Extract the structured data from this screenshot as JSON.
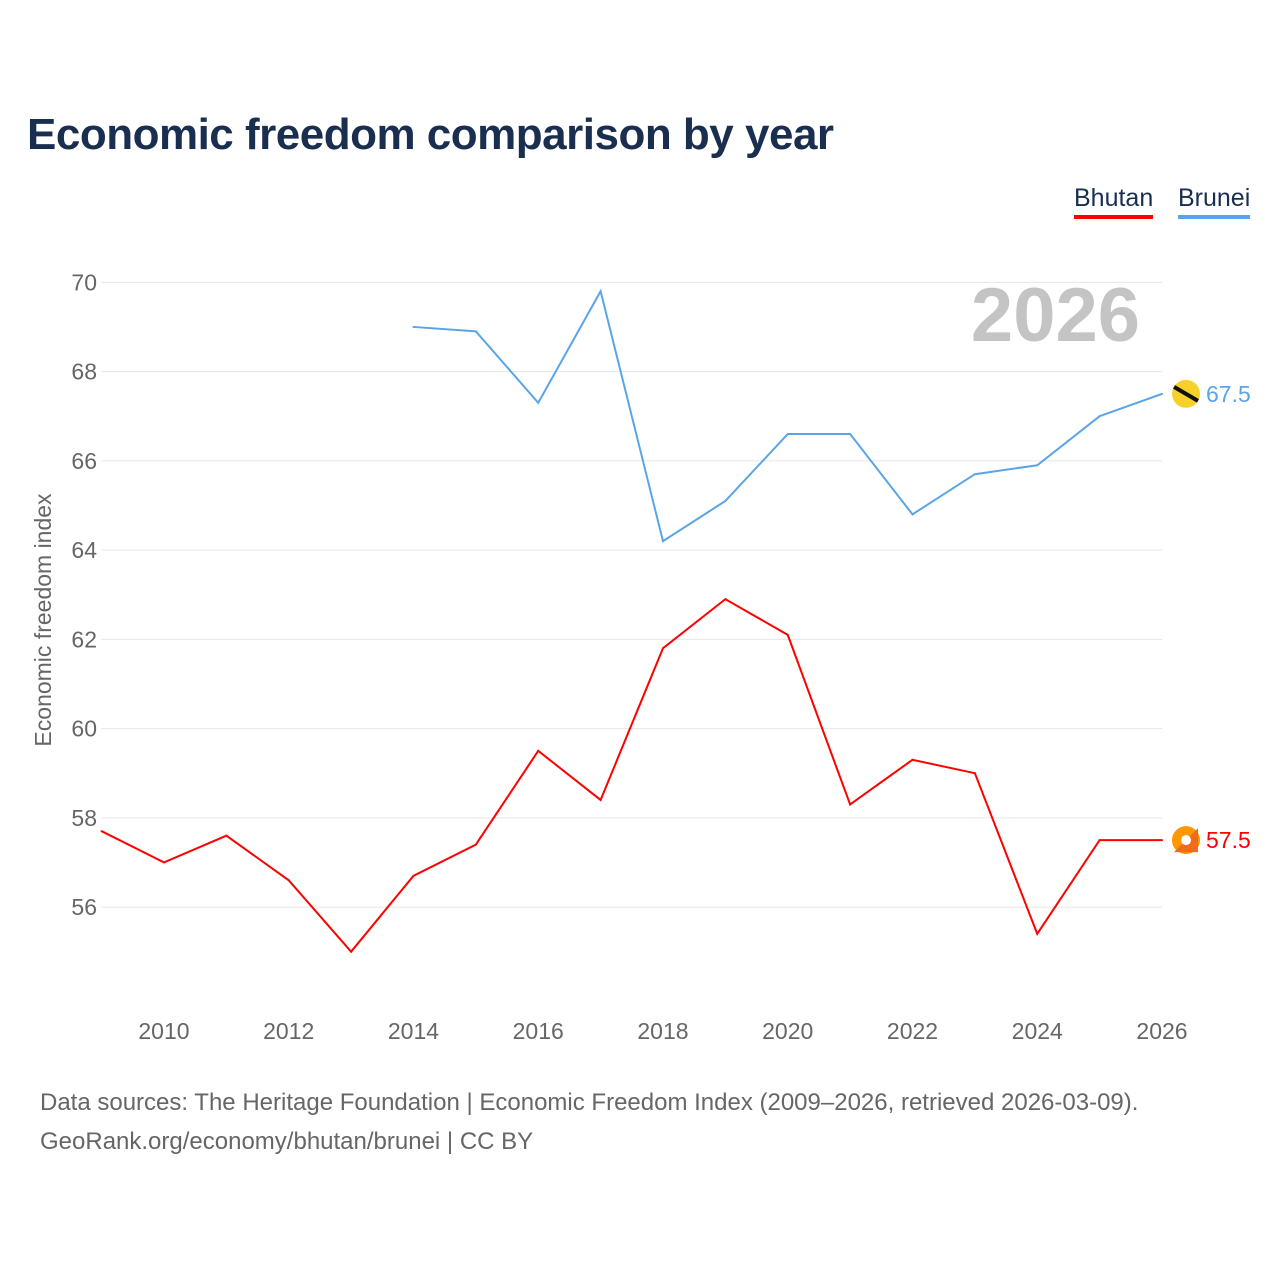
{
  "chart_data": {
    "type": "line",
    "title": "Economic freedom comparison by year",
    "xlabel": "",
    "ylabel": "Economic freedom index",
    "xlim": [
      2009,
      2026
    ],
    "ylim": [
      54.5,
      70.5
    ],
    "grid": true,
    "legend_position": "top-right",
    "watermark_year": "2026",
    "x_ticks": [
      "2010",
      "2012",
      "2014",
      "2016",
      "2018",
      "2020",
      "2022",
      "2024",
      "2026"
    ],
    "y_ticks": [
      "56",
      "58",
      "60",
      "62",
      "64",
      "66",
      "68",
      "70"
    ],
    "series": [
      {
        "name": "Bhutan",
        "color": "#ff0000",
        "end_label": "57.5",
        "x": [
          2009,
          2010,
          2011,
          2012,
          2013,
          2014,
          2015,
          2016,
          2017,
          2018,
          2019,
          2020,
          2021,
          2022,
          2023,
          2024,
          2025,
          2026
        ],
        "values": [
          57.7,
          57.0,
          57.6,
          56.6,
          55.0,
          56.7,
          57.4,
          59.5,
          58.4,
          61.8,
          62.9,
          62.1,
          58.3,
          59.3,
          59.0,
          55.4,
          57.5,
          57.5
        ]
      },
      {
        "name": "Brunei",
        "color": "#5aa5e8",
        "end_label": "67.5",
        "x": [
          2014,
          2015,
          2016,
          2017,
          2018,
          2019,
          2020,
          2021,
          2022,
          2023,
          2024,
          2025,
          2026
        ],
        "values": [
          69.0,
          68.9,
          67.3,
          69.8,
          64.2,
          65.1,
          66.6,
          66.6,
          64.8,
          65.7,
          65.9,
          67.0,
          67.5
        ]
      }
    ]
  },
  "sources": {
    "line1": "Data sources: The Heritage Foundation | Economic Freedom Index (2009–2026, retrieved 2026-03-09).",
    "line2": "GeoRank.org/economy/bhutan/brunei | CC BY"
  }
}
